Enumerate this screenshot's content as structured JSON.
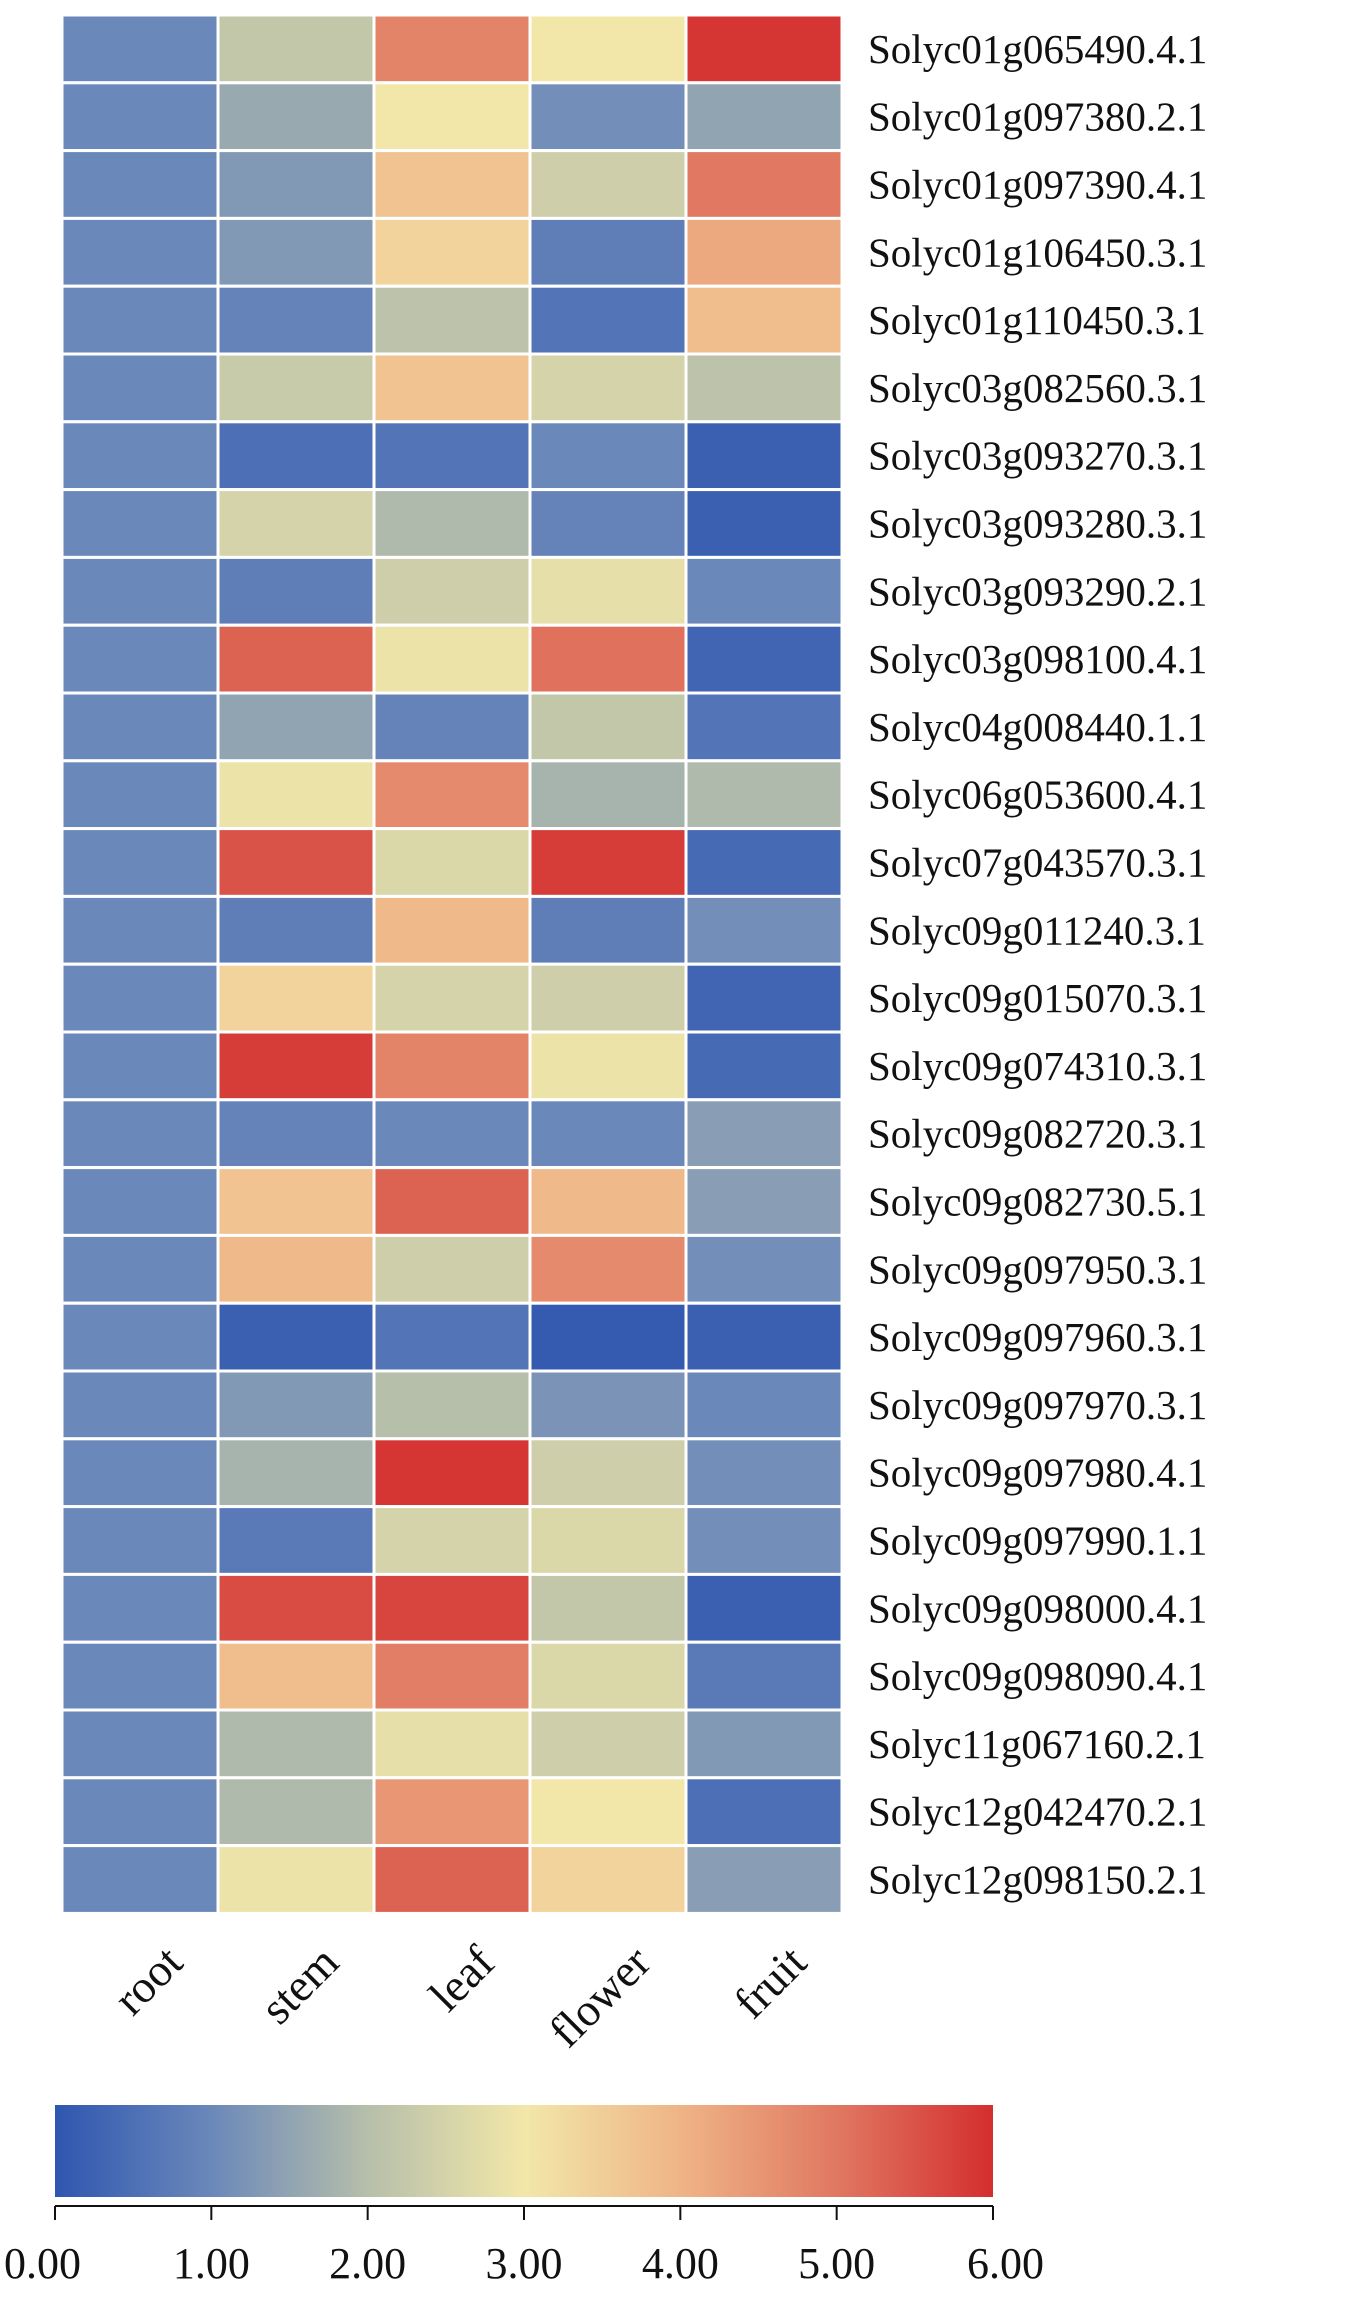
{
  "chart_data": {
    "type": "heatmap",
    "columns": [
      "root",
      "stem",
      "leaf",
      "flower",
      "fruit"
    ],
    "rows": [
      {
        "gene": "Solyc01g065490.4.1",
        "values": [
          1.0,
          2.2,
          4.8,
          3.0,
          5.9
        ]
      },
      {
        "gene": "Solyc01g097380.2.1",
        "values": [
          1.0,
          1.6,
          3.0,
          1.1,
          1.5
        ]
      },
      {
        "gene": "Solyc01g097390.4.1",
        "values": [
          1.0,
          1.3,
          3.7,
          2.4,
          5.0
        ]
      },
      {
        "gene": "Solyc01g106450.3.1",
        "values": [
          1.0,
          1.3,
          3.4,
          0.8,
          4.2
        ]
      },
      {
        "gene": "Solyc01g110450.3.1",
        "values": [
          1.0,
          0.9,
          2.1,
          0.6,
          3.8
        ]
      },
      {
        "gene": "Solyc03g082560.3.1",
        "values": [
          1.0,
          2.3,
          3.7,
          2.5,
          2.1
        ]
      },
      {
        "gene": "Solyc03g093270.3.1",
        "values": [
          1.0,
          0.5,
          0.6,
          1.0,
          0.2
        ]
      },
      {
        "gene": "Solyc03g093280.3.1",
        "values": [
          1.0,
          2.5,
          1.9,
          0.9,
          0.2
        ]
      },
      {
        "gene": "Solyc03g093290.2.1",
        "values": [
          1.0,
          0.8,
          2.4,
          2.8,
          1.0
        ]
      },
      {
        "gene": "Solyc03g098100.4.1",
        "values": [
          1.0,
          5.3,
          2.9,
          5.1,
          0.3
        ]
      },
      {
        "gene": "Solyc04g008440.1.1",
        "values": [
          1.0,
          1.5,
          0.9,
          2.2,
          0.6
        ]
      },
      {
        "gene": "Solyc06g053600.4.1",
        "values": [
          1.0,
          2.9,
          4.7,
          1.8,
          1.9
        ]
      },
      {
        "gene": "Solyc07g043570.3.1",
        "values": [
          1.0,
          5.5,
          2.6,
          5.8,
          0.4
        ]
      },
      {
        "gene": "Solyc09g011240.3.1",
        "values": [
          1.0,
          0.8,
          3.9,
          0.8,
          1.1
        ]
      },
      {
        "gene": "Solyc09g015070.3.1",
        "values": [
          1.0,
          3.4,
          2.5,
          2.4,
          0.3
        ]
      },
      {
        "gene": "Solyc09g074310.3.1",
        "values": [
          1.0,
          5.8,
          4.8,
          2.9,
          0.4
        ]
      },
      {
        "gene": "Solyc09g082720.3.1",
        "values": [
          1.0,
          0.9,
          1.0,
          1.0,
          1.4
        ]
      },
      {
        "gene": "Solyc09g082730.5.1",
        "values": [
          1.0,
          3.7,
          5.3,
          3.9,
          1.4
        ]
      },
      {
        "gene": "Solyc09g097950.3.1",
        "values": [
          1.0,
          3.9,
          2.4,
          4.7,
          1.1
        ]
      },
      {
        "gene": "Solyc09g097960.3.1",
        "values": [
          1.0,
          0.2,
          0.6,
          0.1,
          0.2
        ]
      },
      {
        "gene": "Solyc09g097970.3.1",
        "values": [
          1.0,
          1.3,
          2.0,
          1.2,
          1.0
        ]
      },
      {
        "gene": "Solyc09g097980.4.1",
        "values": [
          1.0,
          1.8,
          5.9,
          2.4,
          1.1
        ]
      },
      {
        "gene": "Solyc09g097990.1.1",
        "values": [
          1.0,
          0.7,
          2.5,
          2.6,
          1.1
        ]
      },
      {
        "gene": "Solyc09g098000.4.1",
        "values": [
          1.0,
          5.6,
          5.7,
          2.2,
          0.2
        ]
      },
      {
        "gene": "Solyc09g098090.4.1",
        "values": [
          1.0,
          3.8,
          4.9,
          2.6,
          0.7
        ]
      },
      {
        "gene": "Solyc11g067160.2.1",
        "values": [
          1.0,
          1.9,
          2.8,
          2.4,
          1.3
        ]
      },
      {
        "gene": "Solyc12g042470.2.1",
        "values": [
          1.0,
          1.9,
          4.5,
          3.0,
          0.5
        ]
      },
      {
        "gene": "Solyc12g098150.2.1",
        "values": [
          1.0,
          2.9,
          5.3,
          3.4,
          1.4
        ]
      }
    ],
    "colorbar": {
      "min": 0,
      "max": 6,
      "ticks": [
        "0.00",
        "1.00",
        "2.00",
        "3.00",
        "4.00",
        "5.00",
        "6.00"
      ]
    },
    "colormap": [
      {
        "value": 0.0,
        "color": "#2f56b0"
      },
      {
        "value": 1.0,
        "color": "#6b88ba"
      },
      {
        "value": 2.0,
        "color": "#b6bfaa"
      },
      {
        "value": 3.0,
        "color": "#f2e7a9"
      },
      {
        "value": 4.0,
        "color": "#efb486"
      },
      {
        "value": 5.0,
        "color": "#e07862"
      },
      {
        "value": 6.0,
        "color": "#d42e2e"
      }
    ],
    "cell_border_color": "#ffffff"
  }
}
